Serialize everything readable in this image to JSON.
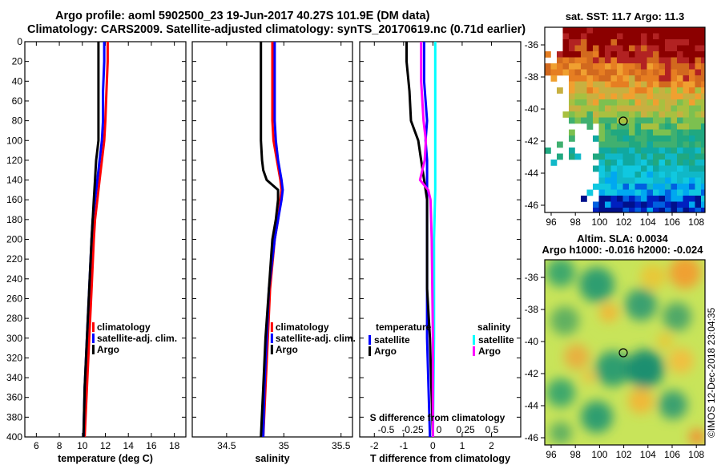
{
  "header": {
    "title_line1": "Argo profile: aoml 5902500_23 19-Jun-2017 40.27S 101.9E (DM data)",
    "title_line2": "Climatology: CARS2009. Satellite-adjusted climatology: synTS_20170619.nc (0.71d earlier)"
  },
  "colors": {
    "climatology": "#ff0000",
    "satellite_adj": "#0000ff",
    "argo": "#000000",
    "salinity_diff": "#00ffff",
    "argo_s_diff": "#ff00ff"
  },
  "chart_data": [
    {
      "type": "line",
      "id": "temperature",
      "xlabel": "temperature (deg C)",
      "ylabel": "",
      "xlim": [
        5,
        19
      ],
      "ylim": [
        400,
        0
      ],
      "xticks": [
        6,
        8,
        10,
        12,
        14,
        16,
        18
      ],
      "yticks": [
        0,
        20,
        40,
        60,
        80,
        100,
        120,
        140,
        160,
        180,
        200,
        220,
        240,
        260,
        280,
        300,
        320,
        340,
        360,
        380,
        400
      ],
      "legend": [
        "climatology",
        "satellite-adj. clim.",
        "Argo"
      ],
      "series": [
        {
          "name": "climatology",
          "depth": [
            0,
            20,
            50,
            80,
            100,
            120,
            140,
            160,
            180,
            200,
            250,
            300,
            350,
            400
          ],
          "values": [
            12.2,
            12.2,
            12.1,
            12.0,
            11.9,
            11.7,
            11.5,
            11.3,
            11.1,
            11.0,
            10.8,
            10.6,
            10.4,
            10.2
          ]
        },
        {
          "name": "satellite-adj. clim.",
          "depth": [
            0,
            20,
            50,
            80,
            100,
            120,
            140,
            160,
            180,
            200,
            250,
            300,
            350,
            400
          ],
          "values": [
            11.9,
            11.9,
            11.8,
            11.8,
            11.7,
            11.5,
            11.3,
            11.1,
            10.9,
            10.8,
            10.6,
            10.4,
            10.2,
            10.1
          ]
        },
        {
          "name": "Argo",
          "depth": [
            0,
            20,
            50,
            80,
            100,
            110,
            120,
            140,
            160,
            180,
            200,
            250,
            300,
            350,
            400
          ],
          "values": [
            11.4,
            11.4,
            11.4,
            11.4,
            11.4,
            11.3,
            11.2,
            11.1,
            11.0,
            10.9,
            10.8,
            10.6,
            10.4,
            10.2,
            10.1
          ]
        }
      ]
    },
    {
      "type": "line",
      "id": "salinity",
      "xlabel": "salinity",
      "ylabel": "",
      "xlim": [
        34.2,
        35.6
      ],
      "ylim": [
        400,
        0
      ],
      "xticks": [
        34.5,
        35,
        35.5
      ],
      "xticklabels": [
        "34.5",
        "35",
        "35.5"
      ],
      "legend": [
        "climatology",
        "satellite-adj. clim.",
        "Argo"
      ],
      "series": [
        {
          "name": "climatology",
          "depth": [
            0,
            20,
            50,
            80,
            100,
            120,
            140,
            150,
            160,
            180,
            200,
            250,
            300,
            350,
            400
          ],
          "values": [
            34.9,
            34.9,
            34.9,
            34.9,
            34.91,
            34.94,
            34.97,
            34.98,
            34.97,
            34.95,
            34.92,
            34.88,
            34.86,
            34.84,
            34.82
          ]
        },
        {
          "name": "satellite-adj. clim.",
          "depth": [
            0,
            20,
            50,
            80,
            100,
            120,
            140,
            150,
            160,
            180,
            200,
            250,
            300,
            350,
            400
          ],
          "values": [
            34.92,
            34.92,
            34.92,
            34.92,
            34.93,
            34.95,
            34.98,
            34.99,
            34.98,
            34.95,
            34.92,
            34.87,
            34.85,
            34.83,
            34.82
          ]
        },
        {
          "name": "Argo",
          "depth": [
            0,
            20,
            50,
            80,
            100,
            120,
            130,
            140,
            150,
            160,
            180,
            200,
            250,
            300,
            350,
            400
          ],
          "values": [
            34.8,
            34.8,
            34.8,
            34.8,
            34.8,
            34.81,
            34.82,
            34.85,
            34.95,
            34.95,
            34.93,
            34.9,
            34.87,
            34.84,
            34.82,
            34.8
          ]
        }
      ]
    },
    {
      "type": "line",
      "id": "difference",
      "xlabel": "T difference from climatology",
      "ylabel": "",
      "xlim": [
        -2.5,
        3
      ],
      "ylim": [
        400,
        0
      ],
      "xticks": [
        -2,
        -1,
        0,
        1,
        2
      ],
      "secondary_axis": {
        "label": "S difference from climatology",
        "ticks": [
          "-0.5",
          "-0.25",
          "0",
          "0.25",
          "0.5"
        ]
      },
      "legend_temperature_title": "temperature",
      "legend_salinity_title": "salinity",
      "legend": [
        "satellite",
        "Argo",
        "satellite",
        "Argo"
      ],
      "series": [
        {
          "name": "temperature satellite",
          "depth": [
            0,
            40,
            80,
            100,
            120,
            140,
            160,
            200,
            300,
            400
          ],
          "values": [
            -0.3,
            -0.3,
            -0.2,
            -0.25,
            -0.2,
            -0.2,
            -0.2,
            -0.2,
            -0.2,
            -0.1
          ]
        },
        {
          "name": "temperature Argo",
          "depth": [
            0,
            20,
            50,
            80,
            100,
            120,
            140,
            160,
            200,
            250,
            300,
            350,
            400
          ],
          "values": [
            -0.9,
            -0.9,
            -0.8,
            -0.75,
            -0.5,
            -0.4,
            -0.3,
            -0.2,
            -0.2,
            -0.2,
            -0.1,
            -0.05,
            0
          ]
        },
        {
          "name": "salinity satellite",
          "depth": [
            0,
            50,
            100,
            150,
            200,
            300,
            400
          ],
          "values": [
            0.02,
            0.02,
            0.02,
            0.02,
            0.01,
            0.01,
            0.0
          ]
        },
        {
          "name": "salinity Argo",
          "depth": [
            0,
            40,
            80,
            100,
            120,
            140,
            150,
            160,
            200,
            300,
            400
          ],
          "values": [
            -0.1,
            -0.1,
            -0.08,
            -0.06,
            -0.07,
            -0.11,
            -0.04,
            -0.02,
            -0.01,
            0,
            0
          ]
        }
      ]
    }
  ],
  "sst_map": {
    "title": "sat. SST: 11.7 Argo: 11.3",
    "yticks": [
      "-36",
      "-38",
      "-40",
      "-42",
      "-44",
      "-46"
    ],
    "xticks": [
      "96",
      "98",
      "100",
      "102",
      "104",
      "106",
      "108"
    ]
  },
  "sla_map": {
    "title_line1": "Altim. SLA: 0.0034",
    "title_line2": "Argo h1000: -0.016 h2000: -0.024",
    "yticks": [
      "-36",
      "-38",
      "-40",
      "-42",
      "-44",
      "-46"
    ],
    "xticks": [
      "96",
      "98",
      "100",
      "102",
      "104",
      "106",
      "108"
    ]
  },
  "footer": {
    "credit": "©IMOS 12-Dec-2018 23:04:35"
  }
}
